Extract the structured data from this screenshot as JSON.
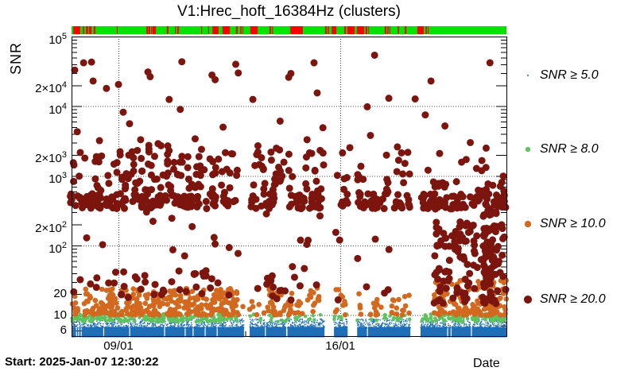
{
  "title": "V1:Hrec_hoft_16384Hz (clusters)",
  "ylabel": "SNR",
  "footer": {
    "start_label": "Start: 2025-Jan-07 12:30:22",
    "xaxis_label": "Date"
  },
  "legend": {
    "items": [
      {
        "label": "SNR ≥ 5.0",
        "color": "#1c6fb8",
        "radius": 1.4
      },
      {
        "label": "SNR ≥ 8.0",
        "color": "#5ec25e",
        "radius": 2.6
      },
      {
        "label": "SNR ≥ 10.0",
        "color": "#d2691e",
        "radius": 3.6
      },
      {
        "label": "SNR ≥ 20.0",
        "color": "#7c150e",
        "radius": 4.8
      }
    ]
  },
  "status_strip": {
    "on_color": "#00e400",
    "off_color": "#fe0000",
    "off_segments": [
      [
        0.004,
        0.02
      ],
      [
        0.026,
        0.029
      ],
      [
        0.033,
        0.038
      ],
      [
        0.04,
        0.046
      ],
      [
        0.051,
        0.055
      ],
      [
        0.104,
        0.106
      ],
      [
        0.172,
        0.176
      ],
      [
        0.177,
        0.181
      ],
      [
        0.183,
        0.185
      ],
      [
        0.186,
        0.194
      ],
      [
        0.219,
        0.223
      ],
      [
        0.238,
        0.24
      ],
      [
        0.243,
        0.247
      ],
      [
        0.298,
        0.3
      ],
      [
        0.314,
        0.316
      ],
      [
        0.324,
        0.338
      ],
      [
        0.347,
        0.364
      ],
      [
        0.378,
        0.382
      ],
      [
        0.388,
        0.391
      ],
      [
        0.393,
        0.395
      ],
      [
        0.411,
        0.428
      ],
      [
        0.455,
        0.459
      ],
      [
        0.461,
        0.463
      ],
      [
        0.503,
        0.532
      ],
      [
        0.583,
        0.587
      ],
      [
        0.589,
        0.592
      ],
      [
        0.598,
        0.609
      ],
      [
        0.627,
        0.631
      ],
      [
        0.634,
        0.651
      ],
      [
        0.656,
        0.673
      ],
      [
        0.676,
        0.68
      ],
      [
        0.682,
        0.684
      ],
      [
        0.72,
        0.724
      ],
      [
        0.726,
        0.729
      ],
      [
        0.731,
        0.733
      ],
      [
        0.75,
        0.753
      ],
      [
        0.766,
        0.77
      ],
      [
        0.795,
        0.81
      ],
      [
        0.814,
        0.817
      ],
      [
        0.819,
        0.821
      ]
    ]
  },
  "chart_data": {
    "type": "scatter",
    "title": "V1:Hrec_hoft_16384Hz (clusters)",
    "xlabel": "Date",
    "ylabel": "SNR",
    "y_scale": "log",
    "ylim": [
      5,
      100000
    ],
    "x_unit": "day of January 2025 (UTC)",
    "xlim": [
      7.52,
      21.24
    ],
    "grid": "dotted",
    "legend_position": "right",
    "x_major_ticks": [
      {
        "day": 9,
        "label": "09/01"
      },
      {
        "day": 16,
        "label": "16/01"
      }
    ],
    "y_ticks": [
      {
        "snr": 100000,
        "m": "10",
        "e": "5",
        "grid": false
      },
      {
        "snr": 20000,
        "m": "2×10",
        "e": "4",
        "grid": false
      },
      {
        "snr": 10000,
        "m": "10",
        "e": "4",
        "grid": true
      },
      {
        "snr": 2000,
        "m": "2×10",
        "e": "3",
        "grid": false
      },
      {
        "snr": 1000,
        "m": "10",
        "e": "3",
        "grid": true
      },
      {
        "snr": 200,
        "m": "2×10",
        "e": "2",
        "grid": false
      },
      {
        "snr": 100,
        "m": "10",
        "e": "2",
        "grid": true
      },
      {
        "snr": 20,
        "m": "20",
        "e": "",
        "grid": false
      },
      {
        "snr": 10,
        "m": "10",
        "e": "",
        "grid": true
      },
      {
        "snr": 6,
        "m": "6",
        "e": "",
        "grid": false
      }
    ],
    "series": [
      {
        "name": "SNR ≥ 5.0",
        "threshold": 5,
        "color": "#1c6fb8"
      },
      {
        "name": "SNR ≥ 8.0",
        "threshold": 8,
        "color": "#5ec25e"
      },
      {
        "name": "SNR ≥ 10.0",
        "threshold": 10,
        "color": "#d2691e"
      },
      {
        "name": "SNR ≥ 20.0",
        "threshold": 20,
        "color": "#7c150e"
      }
    ],
    "off_gaps": [
      [
        12.96,
        13.14
      ],
      [
        15.5,
        15.8
      ],
      [
        16.23,
        16.53
      ],
      [
        18.21,
        18.53
      ],
      [
        7.66,
        7.69
      ],
      [
        7.73,
        7.76
      ],
      [
        7.81,
        7.84
      ],
      [
        8.52,
        8.55
      ],
      [
        9.34,
        9.37
      ],
      [
        10.44,
        10.47
      ],
      [
        11.09,
        11.12
      ],
      [
        11.34,
        11.37
      ],
      [
        11.72,
        11.75
      ],
      [
        12.1,
        12.13
      ],
      [
        13.62,
        13.65
      ],
      [
        14.29,
        14.33
      ],
      [
        16.84,
        16.87
      ],
      [
        19.37,
        19.4
      ],
      [
        19.48,
        19.51
      ],
      [
        20.12,
        20.15
      ]
    ],
    "blue_band": {
      "snr_solid_top": 6.75,
      "speckle_base": 6.55,
      "speckle_dex": 0.132,
      "per_day": 150
    },
    "green_segments": [
      {
        "d": [
          7.52,
          12.8
        ],
        "w": 1.0
      },
      {
        "d": [
          12.9,
          13.6
        ],
        "w": 0.2
      },
      {
        "d": [
          13.7,
          14.47
        ],
        "w": 0.45
      },
      {
        "d": [
          14.55,
          15.38
        ],
        "w": 0.3
      },
      {
        "d": [
          15.75,
          16.66
        ],
        "w": 0.35
      },
      {
        "d": [
          16.95,
          18.2
        ],
        "w": 0.3
      },
      {
        "d": [
          18.55,
          21.24
        ],
        "w": 0.95
      }
    ],
    "green_snr": [
      8.0,
      10.4
    ],
    "orange_segments": [
      {
        "d": [
          7.52,
          12.8
        ],
        "w": 1.0,
        "smax": 24
      },
      {
        "d": [
          12.9,
          13.6
        ],
        "w": 0.15,
        "smax": 16
      },
      {
        "d": [
          13.7,
          14.47
        ],
        "w": 0.8,
        "smax": 24
      },
      {
        "d": [
          14.55,
          14.82
        ],
        "w": 0.5,
        "smax": 20
      },
      {
        "d": [
          14.95,
          15.38
        ],
        "w": 0.5,
        "smax": 26
      },
      {
        "d": [
          15.75,
          16.16
        ],
        "w": 0.55,
        "smax": 26
      },
      {
        "d": [
          16.3,
          16.66
        ],
        "w": 0.5,
        "smax": 22
      },
      {
        "d": [
          16.95,
          17.36
        ],
        "w": 0.45,
        "smax": 20
      },
      {
        "d": [
          17.55,
          17.86
        ],
        "w": 0.4,
        "smax": 18
      },
      {
        "d": [
          17.95,
          18.2
        ],
        "w": 0.45,
        "smax": 20
      },
      {
        "d": [
          18.95,
          21.24
        ],
        "w": 1.1,
        "smax": 32
      }
    ],
    "band_segments": [
      {
        "d": [
          7.45,
          12.05
        ],
        "w": 1.0
      },
      {
        "d": [
          12.05,
          12.8
        ],
        "w": 0.4
      },
      {
        "d": [
          13.18,
          13.92
        ],
        "w": 0.95
      },
      {
        "d": [
          14.35,
          15.45
        ],
        "w": 1.0
      },
      {
        "d": [
          15.45,
          16.18
        ],
        "w": 0.35
      },
      {
        "d": [
          16.18,
          17.45
        ],
        "w": 0.95
      },
      {
        "d": [
          17.7,
          18.2
        ],
        "w": 0.95
      },
      {
        "d": [
          18.55,
          21.24
        ],
        "w": 1.0
      }
    ],
    "band_snr": {
      "center": 430,
      "dex_spread": 0.22
    },
    "red_clusters": [
      {
        "d": [
          7.55,
          8.1
        ],
        "smin": 600,
        "smax": 2600,
        "n": 9
      },
      {
        "d": [
          8.25,
          8.9
        ],
        "smin": 550,
        "smax": 2400,
        "n": 13
      },
      {
        "d": [
          8.9,
          9.75
        ],
        "smin": 600,
        "smax": 2600,
        "n": 26
      },
      {
        "d": [
          9.8,
          10.8
        ],
        "smin": 600,
        "smax": 2800,
        "n": 30
      },
      {
        "d": [
          10.85,
          11.25
        ],
        "smin": 600,
        "smax": 2200,
        "n": 10
      },
      {
        "d": [
          11.3,
          12.1
        ],
        "smin": 600,
        "smax": 2600,
        "n": 22
      },
      {
        "d": [
          12.1,
          12.8
        ],
        "smin": 550,
        "smax": 2200,
        "n": 13
      },
      {
        "d": [
          13.2,
          13.65
        ],
        "smin": 550,
        "smax": 2300,
        "n": 11
      },
      {
        "d": [
          13.75,
          14.5
        ],
        "smin": 600,
        "smax": 2500,
        "n": 20
      },
      {
        "d": [
          14.9,
          15.5
        ],
        "smin": 600,
        "smax": 2400,
        "n": 14
      },
      {
        "d": [
          15.9,
          16.75
        ],
        "smin": 550,
        "smax": 2500,
        "n": 17
      },
      {
        "d": [
          17.4,
          18.2
        ],
        "smin": 550,
        "smax": 2200,
        "n": 14
      },
      {
        "d": [
          18.6,
          19.5
        ],
        "smin": 600,
        "smax": 2400,
        "n": 12
      },
      {
        "d": [
          19.5,
          21.2
        ],
        "smin": 600,
        "smax": 2200,
        "n": 16
      },
      {
        "d": [
          7.6,
          12.8
        ],
        "smin": 28,
        "smax": 320,
        "n": 16
      },
      {
        "d": [
          13.2,
          18.2
        ],
        "smin": 25,
        "smax": 300,
        "n": 16
      },
      {
        "d": [
          7.5,
          12.8
        ],
        "smin": 16,
        "smax": 45,
        "n": 40
      },
      {
        "d": [
          13.7,
          14.5
        ],
        "smin": 16,
        "smax": 40,
        "n": 8
      },
      {
        "d": [
          12.9,
          18.2
        ],
        "smin": 15,
        "smax": 28,
        "n": 12
      },
      {
        "d": [
          18.95,
          21.22
        ],
        "smin": 14,
        "smax": 220,
        "n": 130
      },
      {
        "d": [
          20.5,
          20.92
        ],
        "smin": 14,
        "smax": 420,
        "n": 55
      }
    ],
    "high_points": [
      [
        7.62,
        33000
      ],
      [
        7.9,
        42000
      ],
      [
        8.15,
        43000
      ],
      [
        8.2,
        23000
      ],
      [
        8.62,
        18000
      ],
      [
        9.0,
        20500
      ],
      [
        9.93,
        31000
      ],
      [
        10.0,
        26500
      ],
      [
        10.6,
        12500
      ],
      [
        11.0,
        43500
      ],
      [
        11.95,
        28000
      ],
      [
        12.05,
        24000
      ],
      [
        12.7,
        40000
      ],
      [
        12.78,
        30000
      ],
      [
        13.24,
        12500
      ],
      [
        14.37,
        26000
      ],
      [
        14.44,
        29500
      ],
      [
        15.17,
        42000
      ],
      [
        15.27,
        15500
      ],
      [
        16.85,
        9800
      ],
      [
        17.08,
        54000
      ],
      [
        17.53,
        13000
      ],
      [
        18.36,
        12700
      ],
      [
        18.68,
        7500
      ],
      [
        18.86,
        23000
      ],
      [
        20.72,
        42000
      ],
      [
        7.7,
        4300
      ],
      [
        8.4,
        3200
      ],
      [
        9.15,
        8200
      ],
      [
        9.35,
        5600
      ],
      [
        9.7,
        3300
      ],
      [
        10.25,
        2900
      ],
      [
        10.95,
        9000
      ],
      [
        11.42,
        3400
      ],
      [
        12.3,
        5000
      ],
      [
        13.4,
        2700
      ],
      [
        14.1,
        6100
      ],
      [
        14.95,
        3300
      ],
      [
        15.45,
        4900
      ],
      [
        16.3,
        2540
      ],
      [
        16.95,
        3800
      ],
      [
        17.8,
        2600
      ],
      [
        19.3,
        5200
      ],
      [
        20.1,
        3000
      ],
      [
        20.6,
        2500
      ]
    ]
  }
}
